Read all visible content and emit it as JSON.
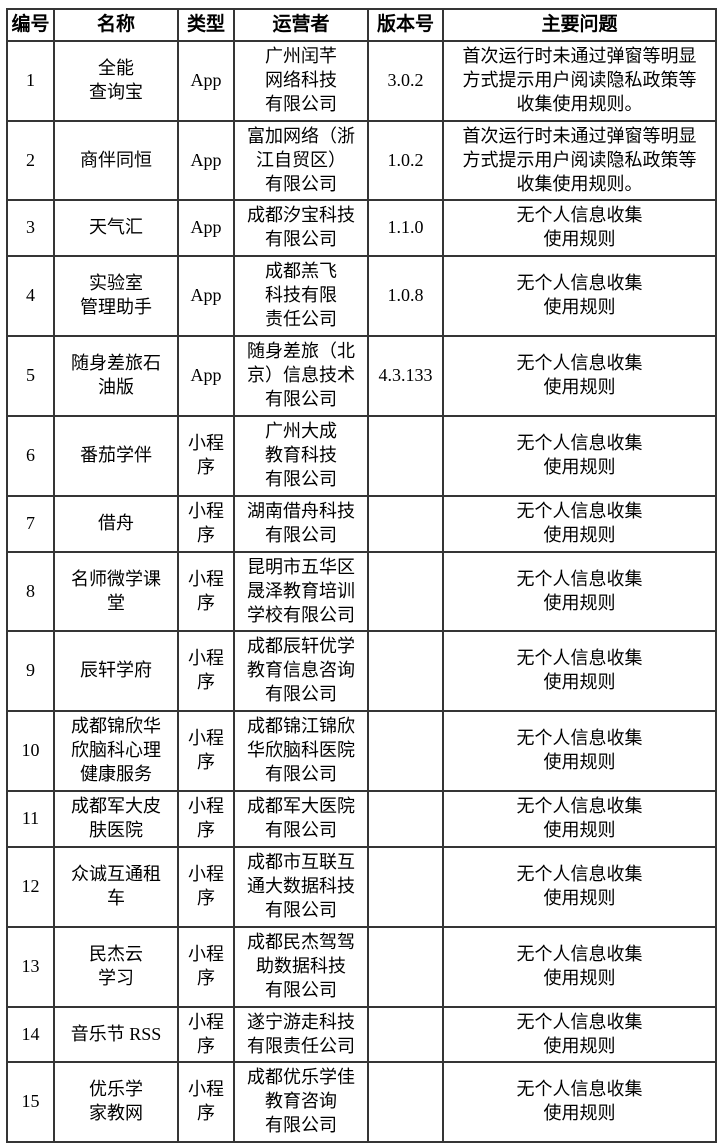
{
  "table": {
    "columns": [
      {
        "key": "id",
        "label": "编号"
      },
      {
        "key": "name",
        "label": "名称"
      },
      {
        "key": "type",
        "label": "类型"
      },
      {
        "key": "operator",
        "label": "运营者"
      },
      {
        "key": "version",
        "label": "版本号"
      },
      {
        "key": "issue",
        "label": "主要问题"
      }
    ],
    "rows": [
      {
        "id": "1",
        "name": "全能\n查询宝",
        "type": "App",
        "operator": "广州闰芊\n网络科技\n有限公司",
        "version": "3.0.2",
        "issue": "首次运行时未通过弹窗等明显\n方式提示用户阅读隐私政策等\n收集使用规则。"
      },
      {
        "id": "2",
        "name": "商伴同恒",
        "type": "App",
        "operator": "富加网络（浙\n江自贸区）\n有限公司",
        "version": "1.0.2",
        "issue": "首次运行时未通过弹窗等明显\n方式提示用户阅读隐私政策等\n收集使用规则。"
      },
      {
        "id": "3",
        "name": "天气汇",
        "type": "App",
        "operator": "成都汐宝科技\n有限公司",
        "version": "1.1.0",
        "issue": "无个人信息收集\n使用规则"
      },
      {
        "id": "4",
        "name": "实验室\n管理助手",
        "type": "App",
        "operator": "成都羔飞\n科技有限\n责任公司",
        "version": "1.0.8",
        "issue": "无个人信息收集\n使用规则"
      },
      {
        "id": "5",
        "name": "随身差旅石\n油版",
        "type": "App",
        "operator": "随身差旅（北\n京）信息技术\n有限公司",
        "version": "4.3.133",
        "issue": "无个人信息收集\n使用规则"
      },
      {
        "id": "6",
        "name": "番茄学伴",
        "type": "小程\n序",
        "operator": "广州大成\n教育科技\n有限公司",
        "version": "",
        "issue": "无个人信息收集\n使用规则"
      },
      {
        "id": "7",
        "name": "借舟",
        "type": "小程\n序",
        "operator": "湖南借舟科技\n有限公司",
        "version": "",
        "issue": "无个人信息收集\n使用规则"
      },
      {
        "id": "8",
        "name": "名师微学课\n堂",
        "type": "小程\n序",
        "operator": "昆明市五华区\n晟泽教育培训\n学校有限公司",
        "version": "",
        "issue": "无个人信息收集\n使用规则"
      },
      {
        "id": "9",
        "name": "辰轩学府",
        "type": "小程\n序",
        "operator": "成都辰轩优学\n教育信息咨询\n有限公司",
        "version": "",
        "issue": "无个人信息收集\n使用规则"
      },
      {
        "id": "10",
        "name": "成都锦欣华\n欣脑科心理\n健康服务",
        "type": "小程\n序",
        "operator": "成都锦江锦欣\n华欣脑科医院\n有限公司",
        "version": "",
        "issue": "无个人信息收集\n使用规则"
      },
      {
        "id": "11",
        "name": "成都军大皮\n肤医院",
        "type": "小程\n序",
        "operator": "成都军大医院\n有限公司",
        "version": "",
        "issue": "无个人信息收集\n使用规则"
      },
      {
        "id": "12",
        "name": "众诚互通租\n车",
        "type": "小程\n序",
        "operator": "成都市互联互\n通大数据科技\n有限公司",
        "version": "",
        "issue": "无个人信息收集\n使用规则"
      },
      {
        "id": "13",
        "name": "民杰云\n学习",
        "type": "小程\n序",
        "operator": "成都民杰驾驾\n助数据科技\n有限公司",
        "version": "",
        "issue": "无个人信息收集\n使用规则"
      },
      {
        "id": "14",
        "name": "音乐节 RSS",
        "type": "小程\n序",
        "operator": "遂宁游走科技\n有限责任公司",
        "version": "",
        "issue": "无个人信息收集\n使用规则"
      },
      {
        "id": "15",
        "name": "优乐学\n家教网",
        "type": "小程\n序",
        "operator": "成都优乐学佳\n教育咨询\n有限公司",
        "version": "",
        "issue": "无个人信息收集\n使用规则"
      }
    ]
  }
}
